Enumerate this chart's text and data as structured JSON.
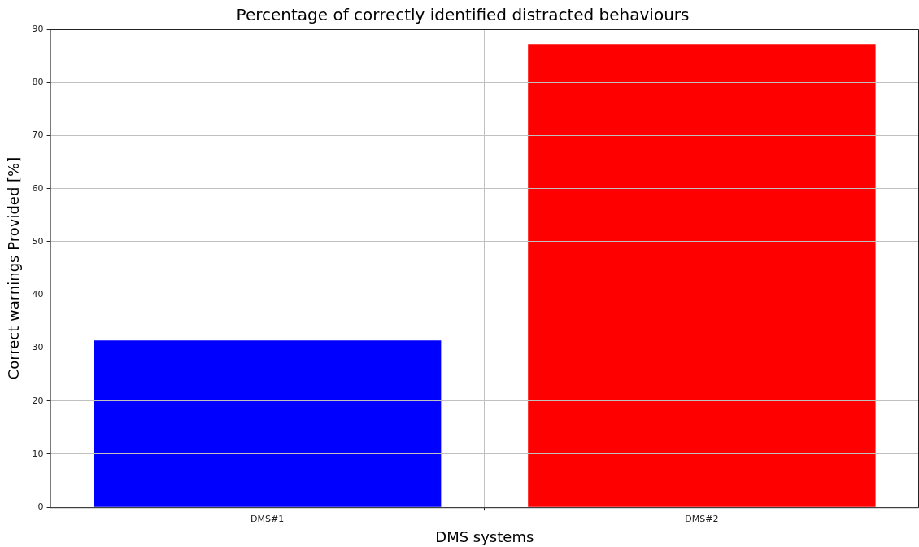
{
  "chart_data": {
    "type": "bar",
    "title": "Percentage of correctly identified distracted behaviours",
    "xlabel": "DMS systems",
    "ylabel": "Correct warnings Provided [%]",
    "categories": [
      "DMS#1",
      "DMS#2"
    ],
    "values": [
      31.4,
      87.2
    ],
    "colors": [
      "#0000ff",
      "#ff0000"
    ],
    "ylim": [
      0,
      90
    ],
    "yticks": [
      0,
      10,
      20,
      30,
      40,
      50,
      60,
      70,
      80,
      90
    ],
    "grid": true
  }
}
